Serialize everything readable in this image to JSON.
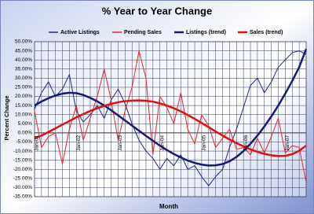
{
  "chart_data": {
    "type": "line",
    "title": "% Year to Year Change",
    "x_label": "Month",
    "y_label": "Percent Change",
    "categories": [
      "Jan-01",
      null,
      null,
      null,
      null,
      null,
      "Jan-02",
      null,
      null,
      null,
      null,
      null,
      "Jan-03",
      null,
      null,
      null,
      null,
      null,
      "Jan-04",
      null,
      null,
      null,
      null,
      null,
      "Jan-05",
      null,
      null,
      null,
      null,
      null,
      "Jan-06",
      null,
      null,
      null,
      null,
      null,
      "Jan-07",
      null,
      null,
      null
    ],
    "series": [
      {
        "name": "Active Listings",
        "color": "#1c2a8c",
        "line_width": 1,
        "values": [
          13,
          22,
          28,
          20,
          24,
          32,
          12,
          6,
          10,
          15,
          8,
          18,
          24,
          16,
          5,
          -4,
          -10,
          -14,
          -20,
          -14,
          -18,
          -12,
          -20,
          -18,
          -24,
          -29,
          -24,
          -20,
          -8,
          2,
          14,
          26,
          30,
          22,
          28,
          36,
          40,
          44,
          45,
          43
        ]
      },
      {
        "name": "Pending Sales",
        "color": "#e8262a",
        "line_width": 1,
        "values": [
          12,
          -8,
          -2,
          0,
          -17,
          2,
          15,
          -4,
          8,
          20,
          35,
          18,
          -4,
          12,
          25,
          45,
          30,
          -12,
          20,
          14,
          5,
          22,
          2,
          -6,
          10,
          4,
          -8,
          -3,
          2,
          -9,
          -8,
          -12,
          -3,
          -11,
          -2,
          8,
          -11,
          -7,
          -8,
          -27
        ]
      },
      {
        "name": "Listings (trend)",
        "color": "#151b78",
        "line_width": 2.5,
        "values": [
          15,
          17.2,
          19,
          20.5,
          21.5,
          22,
          21.8,
          20.8,
          19.2,
          17.3,
          15,
          12.4,
          9.6,
          6.8,
          4,
          1.2,
          -1.6,
          -4.3,
          -7,
          -9.4,
          -11.6,
          -13.5,
          -15.2,
          -16.5,
          -17.4,
          -17.9,
          -17.8,
          -17.1,
          -15.6,
          -13.2,
          -10,
          -6,
          -1.5,
          3.5,
          9,
          15,
          21.5,
          28.5,
          36,
          46
        ]
      },
      {
        "name": "Sales (trend)",
        "color": "#e01010",
        "line_width": 2.5,
        "values": [
          -3,
          -1.5,
          0.5,
          2.5,
          4.5,
          6.5,
          8.5,
          10.3,
          12,
          13.5,
          14.8,
          15.9,
          16.8,
          17.4,
          17.7,
          17.8,
          17.6,
          17.1,
          16.2,
          15,
          13.5,
          11.8,
          9.8,
          7.7,
          5.4,
          3.1,
          0.8,
          -1.5,
          -3.6,
          -5.6,
          -7.4,
          -9,
          -10.4,
          -11.5,
          -12.3,
          -12.7,
          -12.6,
          -11.7,
          -9.8,
          -7
        ]
      }
    ],
    "ylim": [
      -35,
      50
    ],
    "yticks": [
      {
        "value": -35,
        "label": "-35.00%"
      },
      {
        "value": -30,
        "label": "-30.00%"
      },
      {
        "value": -25,
        "label": "-25.00%"
      },
      {
        "value": -20,
        "label": "-20.00%"
      },
      {
        "value": -15,
        "label": "-15.00%"
      },
      {
        "value": -10,
        "label": "-10.00%"
      },
      {
        "value": -5,
        "label": "-5.00%"
      },
      {
        "value": 0,
        "label": "0.00%"
      },
      {
        "value": 5,
        "label": "5.00%"
      },
      {
        "value": 10,
        "label": "10.00%"
      },
      {
        "value": 15,
        "label": "15.00%"
      },
      {
        "value": 20,
        "label": "20.00%"
      },
      {
        "value": 25,
        "label": "25.00%"
      },
      {
        "value": 30,
        "label": "30.00%"
      },
      {
        "value": 35,
        "label": "35.00%"
      },
      {
        "value": 40,
        "label": "40.00%"
      },
      {
        "value": 45,
        "label": "45.00%"
      },
      {
        "value": 50,
        "label": "50.00%"
      }
    ],
    "grid": true,
    "legend": "top"
  }
}
